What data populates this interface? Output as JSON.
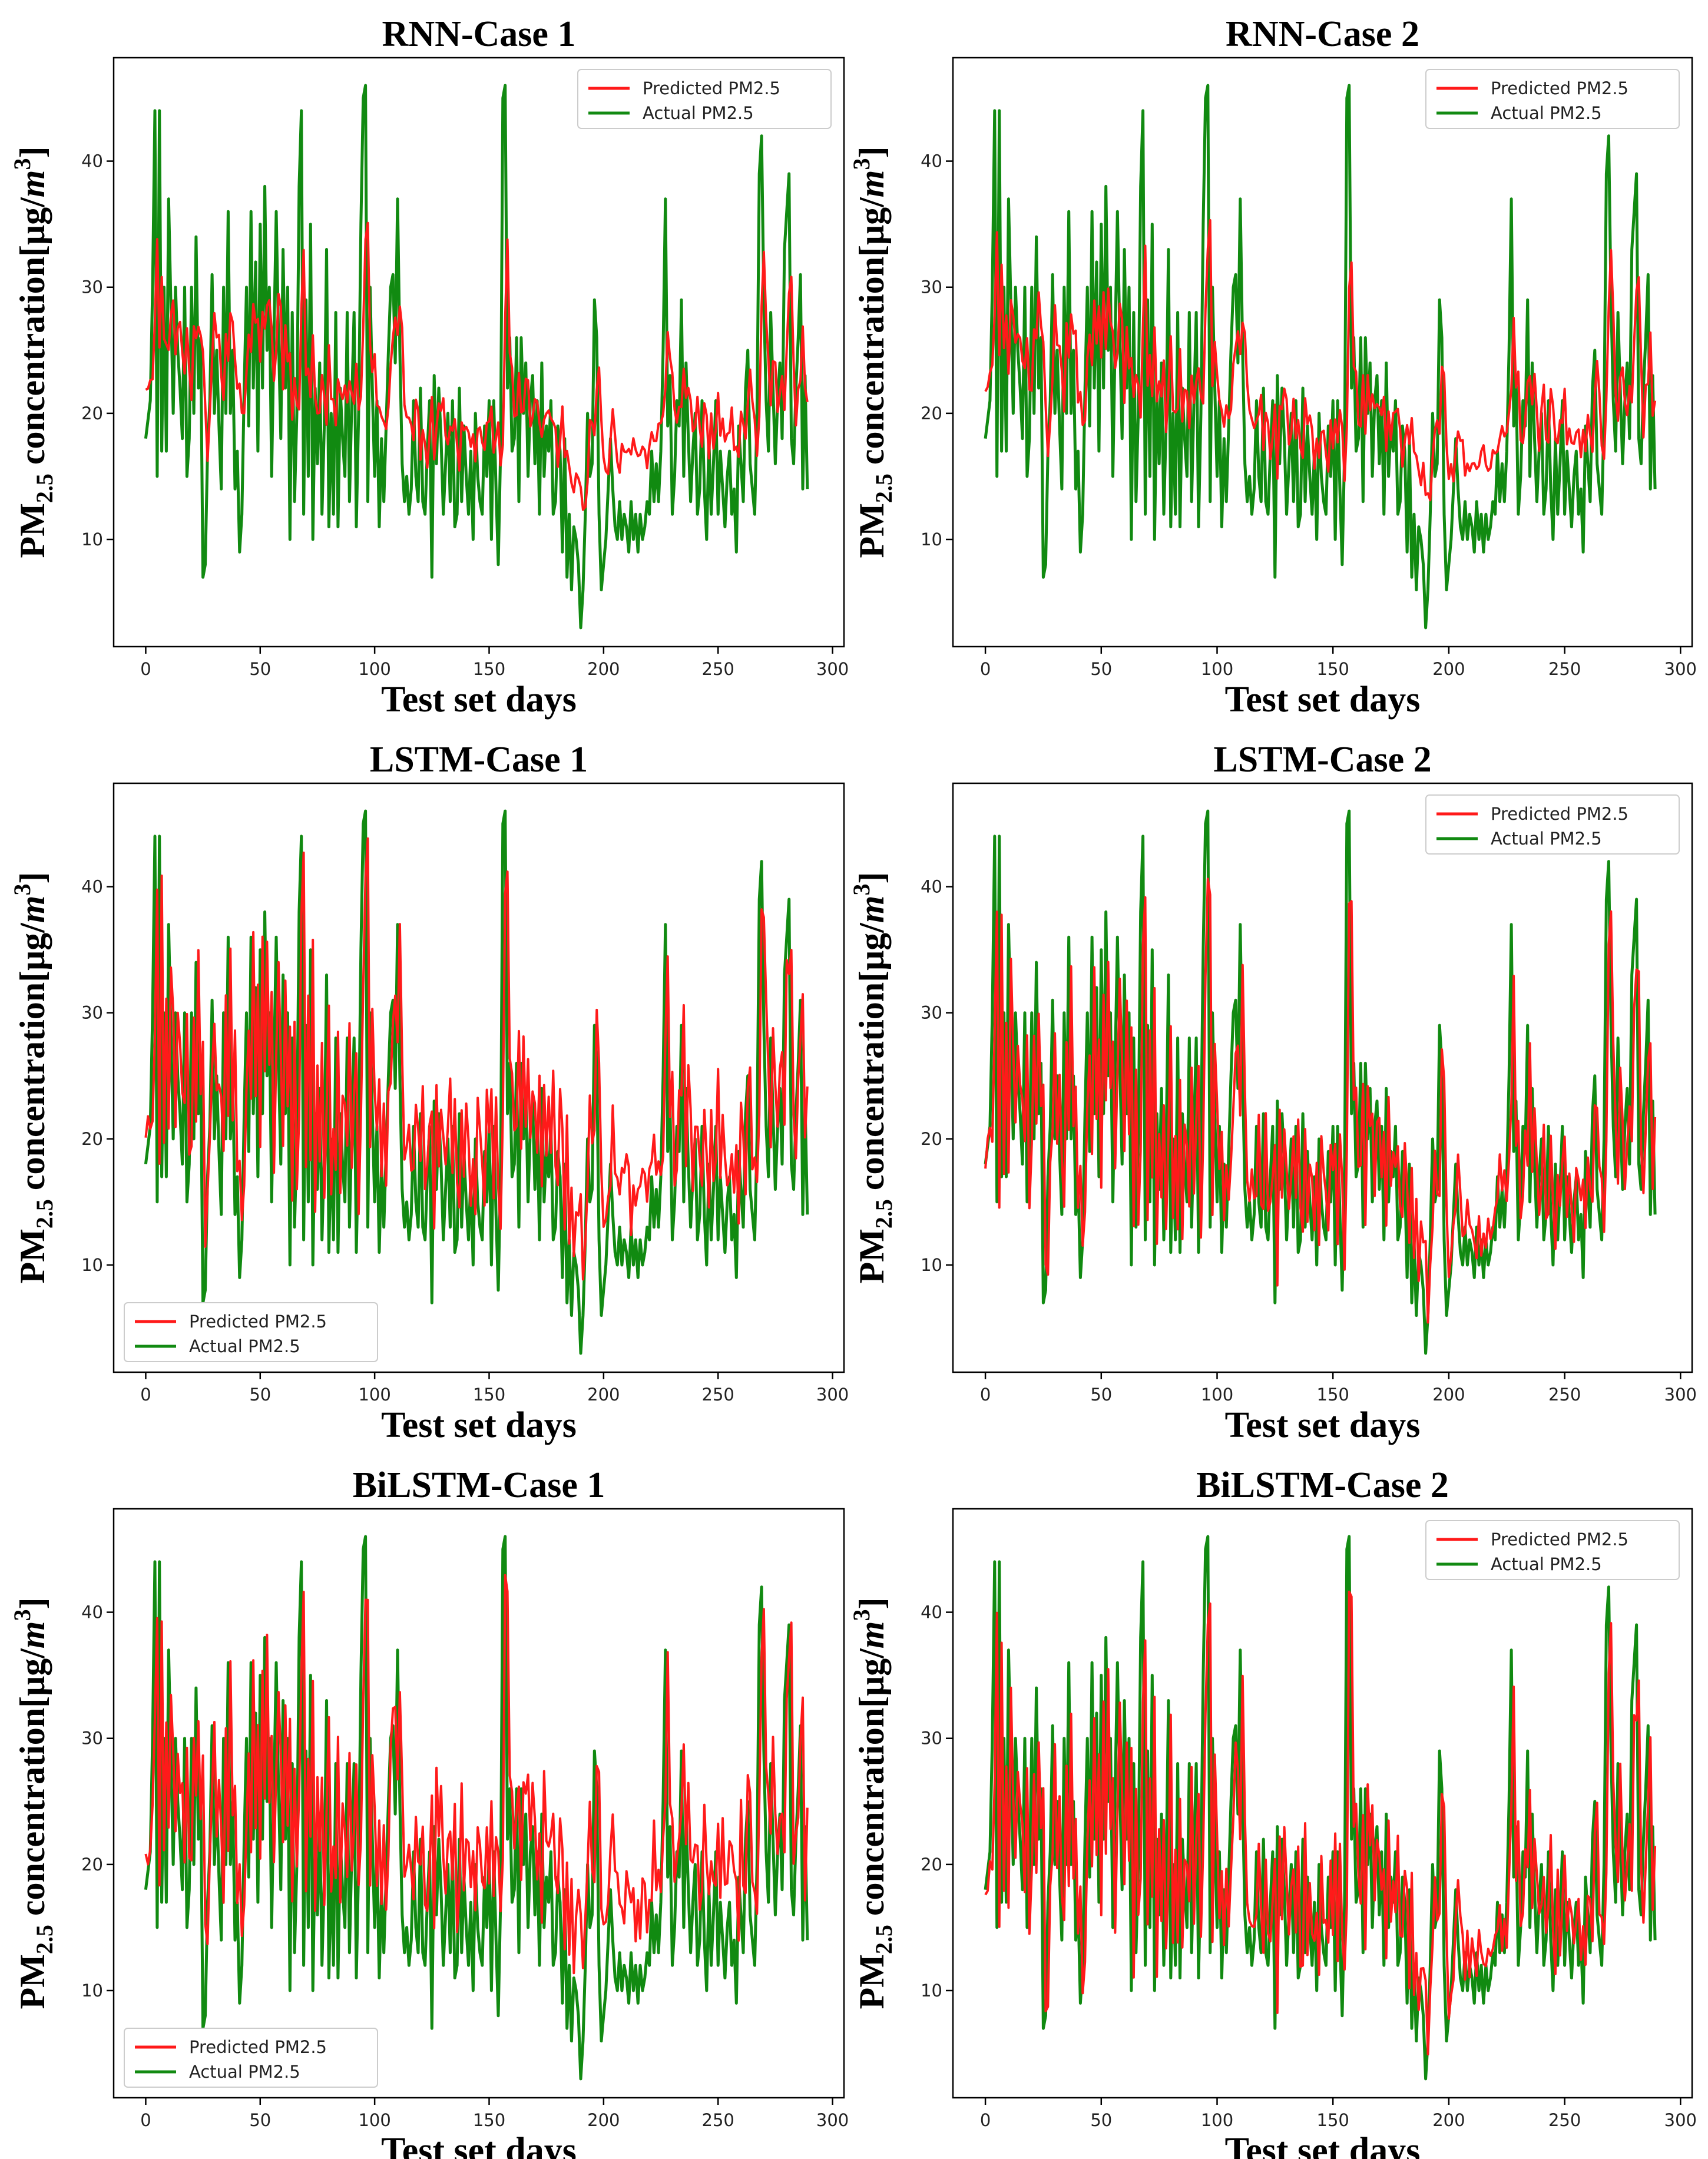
{
  "colors": {
    "predicted": "#ff1a1a",
    "actual": "#118a11",
    "frame": "#000000"
  },
  "chart_data": [
    {
      "type": "line",
      "title": "RNN-Case 1",
      "xlabel": "Test set days",
      "ylabel_prefix": "PM",
      "ylabel_sub": "2.5",
      "ylabel_main": " concentration[μg/",
      "ylabel_unit": "m",
      "ylabel_sup": "3",
      "ylabel_end": "]",
      "xlim": [
        -14,
        305
      ],
      "ylim": [
        1.5,
        48.2
      ],
      "xticks": [
        0,
        50,
        100,
        150,
        200,
        250,
        300
      ],
      "xtick_labels": [
        "0",
        "50",
        "100",
        "150",
        "200",
        "250",
        "300"
      ],
      "yticks": [
        10,
        20,
        30,
        40
      ],
      "ytick_labels": [
        "10",
        "20",
        "30",
        "40"
      ],
      "legend_position": "top-right",
      "legend": [
        "Predicted PM2.5",
        "Actual PM2.5"
      ],
      "model": "rnn",
      "noise_pred": 1.2,
      "seed": 11,
      "series": [
        {
          "name": "Predicted PM2.5",
          "model": "rnn"
        },
        {
          "name": "Actual PM2.5",
          "values_ref": "actual"
        }
      ]
    },
    {
      "type": "line",
      "title": "RNN-Case 2",
      "xlabel": "Test set days",
      "ylabel_prefix": "PM",
      "ylabel_sub": "2.5",
      "ylabel_main": " concentration[μg/",
      "ylabel_unit": "m",
      "ylabel_sup": "3",
      "ylabel_end": "]",
      "xlim": [
        -14,
        305
      ],
      "ylim": [
        1.5,
        48.2
      ],
      "xticks": [
        0,
        50,
        100,
        150,
        200,
        250,
        300
      ],
      "xtick_labels": [
        "0",
        "50",
        "100",
        "150",
        "200",
        "250",
        "300"
      ],
      "yticks": [
        10,
        20,
        30,
        40
      ],
      "ytick_labels": [
        "10",
        "20",
        "30",
        "40"
      ],
      "legend_position": "top-right",
      "legend": [
        "Predicted PM2.5",
        "Actual PM2.5"
      ],
      "model": "rnn2",
      "noise_pred": 1.5,
      "seed": 23,
      "series": [
        {
          "name": "Predicted PM2.5",
          "model": "rnn2"
        },
        {
          "name": "Actual PM2.5",
          "values_ref": "actual"
        }
      ]
    },
    {
      "type": "line",
      "title": "LSTM-Case 1",
      "xlabel": "Test set days",
      "ylabel_prefix": "PM",
      "ylabel_sub": "2.5",
      "ylabel_main": " concentration[μg/",
      "ylabel_unit": "m",
      "ylabel_sup": "3",
      "ylabel_end": "]",
      "xlim": [
        -14,
        305
      ],
      "ylim": [
        1.5,
        48.2
      ],
      "xticks": [
        0,
        50,
        100,
        150,
        200,
        250,
        300
      ],
      "xtick_labels": [
        "0",
        "50",
        "100",
        "150",
        "200",
        "250",
        "300"
      ],
      "yticks": [
        10,
        20,
        30,
        40
      ],
      "ytick_labels": [
        "10",
        "20",
        "30",
        "40"
      ],
      "legend_position": "bottom-left",
      "legend": [
        "Predicted PM2.5",
        "Actual PM2.5"
      ],
      "model": "lstm1",
      "noise_pred": 2.2,
      "seed": 37,
      "series": [
        {
          "name": "Predicted PM2.5",
          "model": "lstm1"
        },
        {
          "name": "Actual PM2.5",
          "values_ref": "actual"
        }
      ]
    },
    {
      "type": "line",
      "title": "LSTM-Case 2",
      "xlabel": "Test set days",
      "ylabel_prefix": "PM",
      "ylabel_sub": "2.5",
      "ylabel_main": " concentration[μg/",
      "ylabel_unit": "m",
      "ylabel_sup": "3",
      "ylabel_end": "]",
      "xlim": [
        -14,
        305
      ],
      "ylim": [
        1.5,
        48.2
      ],
      "xticks": [
        0,
        50,
        100,
        150,
        200,
        250,
        300
      ],
      "xtick_labels": [
        "0",
        "50",
        "100",
        "150",
        "200",
        "250",
        "300"
      ],
      "yticks": [
        10,
        20,
        30,
        40
      ],
      "ytick_labels": [
        "10",
        "20",
        "30",
        "40"
      ],
      "legend_position": "top-right",
      "legend": [
        "Predicted PM2.5",
        "Actual PM2.5"
      ],
      "model": "lstm2",
      "noise_pred": 1.6,
      "seed": 41,
      "series": [
        {
          "name": "Predicted PM2.5",
          "model": "lstm2"
        },
        {
          "name": "Actual PM2.5",
          "values_ref": "actual"
        }
      ]
    },
    {
      "type": "line",
      "title": "BiLSTM-Case 1",
      "xlabel": "Test set days",
      "ylabel_prefix": "PM",
      "ylabel_sub": "2.5",
      "ylabel_main": " concentration[μg/",
      "ylabel_unit": "m",
      "ylabel_sup": "3",
      "ylabel_end": "]",
      "xlim": [
        -14,
        305
      ],
      "ylim": [
        1.5,
        48.2
      ],
      "xticks": [
        0,
        50,
        100,
        150,
        200,
        250,
        300
      ],
      "xtick_labels": [
        "0",
        "50",
        "100",
        "150",
        "200",
        "250",
        "300"
      ],
      "yticks": [
        10,
        20,
        30,
        40
      ],
      "ytick_labels": [
        "10",
        "20",
        "30",
        "40"
      ],
      "legend_position": "bottom-left",
      "legend": [
        "Predicted PM2.5",
        "Actual PM2.5"
      ],
      "model": "bilstm1",
      "noise_pred": 2.4,
      "seed": 53,
      "series": [
        {
          "name": "Predicted PM2.5",
          "model": "bilstm1"
        },
        {
          "name": "Actual PM2.5",
          "values_ref": "actual"
        }
      ]
    },
    {
      "type": "line",
      "title": "BiLSTM-Case 2",
      "xlabel": "Test set days",
      "ylabel_prefix": "PM",
      "ylabel_sub": "2.5",
      "ylabel_main": " concentration[μg/",
      "ylabel_unit": "m",
      "ylabel_sup": "3",
      "ylabel_end": "]",
      "xlim": [
        -14,
        305
      ],
      "ylim": [
        1.5,
        48.2
      ],
      "xticks": [
        0,
        50,
        100,
        150,
        200,
        250,
        300
      ],
      "xtick_labels": [
        "0",
        "50",
        "100",
        "150",
        "200",
        "250",
        "300"
      ],
      "yticks": [
        10,
        20,
        30,
        40
      ],
      "ytick_labels": [
        "10",
        "20",
        "30",
        "40"
      ],
      "legend_position": "top-right",
      "legend": [
        "Predicted PM2.5",
        "Actual PM2.5"
      ],
      "model": "bilstm2",
      "noise_pred": 1.7,
      "seed": 67,
      "series": [
        {
          "name": "Predicted PM2.5",
          "model": "bilstm2"
        },
        {
          "name": "Actual PM2.5",
          "values_ref": "actual"
        }
      ]
    }
  ],
  "actual_anchors": [
    [
      0,
      18
    ],
    [
      2,
      21
    ],
    [
      3,
      30
    ],
    [
      4,
      44
    ],
    [
      5,
      15
    ],
    [
      6,
      44
    ],
    [
      7,
      17
    ],
    [
      8,
      30
    ],
    [
      9,
      17
    ],
    [
      10,
      37
    ],
    [
      12,
      20
    ],
    [
      13,
      30
    ],
    [
      14,
      25
    ],
    [
      15,
      22
    ],
    [
      16,
      18
    ],
    [
      17,
      30
    ],
    [
      18,
      15
    ],
    [
      19,
      18
    ],
    [
      20,
      30
    ],
    [
      21,
      20
    ],
    [
      22,
      34
    ],
    [
      23,
      22
    ],
    [
      24,
      26
    ],
    [
      25,
      7
    ],
    [
      26,
      8
    ],
    [
      27,
      17
    ],
    [
      28,
      21
    ],
    [
      29,
      31
    ],
    [
      30,
      20
    ],
    [
      31,
      25
    ],
    [
      32,
      19
    ],
    [
      33,
      14
    ],
    [
      34,
      30
    ],
    [
      35,
      20
    ],
    [
      36,
      36
    ],
    [
      37,
      20
    ],
    [
      38,
      25
    ],
    [
      39,
      14
    ],
    [
      40,
      17
    ],
    [
      41,
      9
    ],
    [
      42,
      12
    ],
    [
      43,
      22
    ],
    [
      44,
      30
    ],
    [
      45,
      19
    ],
    [
      46,
      36
    ],
    [
      47,
      22
    ],
    [
      48,
      32
    ],
    [
      49,
      17
    ],
    [
      50,
      35
    ],
    [
      51,
      22
    ],
    [
      52,
      38
    ],
    [
      53,
      25
    ],
    [
      54,
      30
    ],
    [
      55,
      15
    ],
    [
      56,
      26
    ],
    [
      57,
      36
    ],
    [
      58,
      26
    ],
    [
      59,
      18
    ],
    [
      60,
      33
    ],
    [
      61,
      22
    ],
    [
      62,
      30
    ],
    [
      63,
      10
    ],
    [
      64,
      28
    ],
    [
      65,
      13
    ],
    [
      66,
      20
    ],
    [
      67,
      38
    ],
    [
      68,
      44
    ],
    [
      69,
      12
    ],
    [
      70,
      29
    ],
    [
      71,
      15
    ],
    [
      72,
      35
    ],
    [
      73,
      10
    ],
    [
      74,
      22
    ],
    [
      75,
      16
    ],
    [
      76,
      24
    ],
    [
      77,
      12
    ],
    [
      78,
      19
    ],
    [
      79,
      33
    ],
    [
      80,
      11
    ],
    [
      81,
      20
    ],
    [
      82,
      12
    ],
    [
      83,
      28
    ],
    [
      84,
      11
    ],
    [
      85,
      22
    ],
    [
      86,
      18
    ],
    [
      87,
      15
    ],
    [
      88,
      28
    ],
    [
      89,
      13
    ],
    [
      90,
      21
    ],
    [
      91,
      28
    ],
    [
      92,
      11
    ],
    [
      93,
      20
    ],
    [
      94,
      35
    ],
    [
      95,
      45
    ],
    [
      96,
      46
    ],
    [
      97,
      13
    ],
    [
      98,
      30
    ],
    [
      99,
      22
    ],
    [
      100,
      15
    ],
    [
      101,
      21
    ],
    [
      102,
      11
    ],
    [
      103,
      18
    ],
    [
      104,
      13
    ],
    [
      105,
      19
    ],
    [
      106,
      25
    ],
    [
      107,
      30
    ],
    [
      108,
      31
    ],
    [
      109,
      24
    ],
    [
      110,
      37
    ],
    [
      111,
      25
    ],
    [
      112,
      16
    ],
    [
      113,
      13
    ],
    [
      114,
      15
    ],
    [
      115,
      12
    ],
    [
      116,
      14
    ],
    [
      117,
      21
    ],
    [
      118,
      15
    ],
    [
      119,
      13
    ],
    [
      120,
      22
    ],
    [
      121,
      13
    ],
    [
      122,
      12
    ],
    [
      123,
      17
    ],
    [
      124,
      21
    ],
    [
      125,
      7
    ],
    [
      126,
      23
    ],
    [
      127,
      16
    ],
    [
      128,
      22
    ],
    [
      129,
      18
    ],
    [
      130,
      12
    ],
    [
      131,
      16
    ],
    [
      132,
      20
    ],
    [
      133,
      13
    ],
    [
      134,
      21
    ],
    [
      135,
      11
    ],
    [
      136,
      12
    ],
    [
      137,
      22
    ],
    [
      138,
      13
    ],
    [
      139,
      19
    ],
    [
      140,
      15
    ],
    [
      141,
      12
    ],
    [
      142,
      17
    ],
    [
      143,
      10
    ],
    [
      144,
      20
    ],
    [
      145,
      15
    ],
    [
      146,
      13
    ],
    [
      147,
      12
    ],
    [
      148,
      19
    ],
    [
      149,
      15
    ],
    [
      150,
      21
    ],
    [
      151,
      10
    ],
    [
      152,
      21
    ],
    [
      153,
      14
    ],
    [
      154,
      8
    ],
    [
      155,
      17
    ],
    [
      156,
      45
    ],
    [
      157,
      46
    ],
    [
      158,
      22
    ],
    [
      159,
      26
    ],
    [
      160,
      17
    ],
    [
      161,
      18
    ],
    [
      162,
      26
    ],
    [
      163,
      13
    ],
    [
      164,
      26
    ],
    [
      165,
      20
    ],
    [
      166,
      24
    ],
    [
      167,
      15
    ],
    [
      168,
      21
    ],
    [
      169,
      23
    ],
    [
      170,
      16
    ],
    [
      171,
      21
    ],
    [
      172,
      12
    ],
    [
      173,
      24
    ],
    [
      174,
      15
    ],
    [
      175,
      19
    ],
    [
      176,
      17
    ],
    [
      177,
      21
    ],
    [
      178,
      12
    ],
    [
      179,
      13
    ],
    [
      180,
      19
    ],
    [
      181,
      17
    ],
    [
      182,
      9
    ],
    [
      183,
      18
    ],
    [
      184,
      7
    ],
    [
      185,
      12
    ],
    [
      186,
      6
    ],
    [
      187,
      11
    ],
    [
      188,
      10
    ],
    [
      189,
      8
    ],
    [
      190,
      3
    ],
    [
      191,
      6
    ],
    [
      192,
      12
    ],
    [
      193,
      20
    ],
    [
      194,
      15
    ],
    [
      195,
      16
    ],
    [
      196,
      29
    ],
    [
      197,
      26
    ],
    [
      198,
      12
    ],
    [
      199,
      6
    ],
    [
      200,
      8
    ],
    [
      201,
      10
    ],
    [
      202,
      14
    ],
    [
      203,
      18
    ],
    [
      204,
      14
    ],
    [
      205,
      11
    ],
    [
      206,
      10
    ],
    [
      207,
      13
    ],
    [
      208,
      10
    ],
    [
      209,
      12
    ],
    [
      210,
      11
    ],
    [
      211,
      9
    ],
    [
      212,
      13
    ],
    [
      213,
      10
    ],
    [
      214,
      12
    ],
    [
      215,
      9
    ],
    [
      216,
      12
    ],
    [
      217,
      10
    ],
    [
      218,
      11
    ],
    [
      219,
      13
    ],
    [
      220,
      12
    ],
    [
      221,
      17
    ],
    [
      222,
      13
    ],
    [
      223,
      16
    ],
    [
      224,
      13
    ],
    [
      225,
      17
    ],
    [
      226,
      25
    ],
    [
      227,
      37
    ],
    [
      228,
      19
    ],
    [
      229,
      23
    ],
    [
      230,
      12
    ],
    [
      231,
      15
    ],
    [
      232,
      21
    ],
    [
      233,
      19
    ],
    [
      234,
      29
    ],
    [
      235,
      15
    ],
    [
      236,
      24
    ],
    [
      237,
      18
    ],
    [
      238,
      13
    ],
    [
      239,
      17
    ],
    [
      240,
      20
    ],
    [
      241,
      12
    ],
    [
      242,
      14
    ],
    [
      243,
      21
    ],
    [
      244,
      14
    ],
    [
      245,
      10
    ],
    [
      246,
      18
    ],
    [
      247,
      12
    ],
    [
      248,
      16
    ],
    [
      249,
      21
    ],
    [
      250,
      12
    ],
    [
      251,
      17
    ],
    [
      252,
      14
    ],
    [
      253,
      11
    ],
    [
      254,
      15
    ],
    [
      255,
      17
    ],
    [
      256,
      12
    ],
    [
      257,
      14
    ],
    [
      258,
      9
    ],
    [
      259,
      19
    ],
    [
      260,
      16
    ],
    [
      261,
      13
    ],
    [
      262,
      22
    ],
    [
      263,
      25
    ],
    [
      264,
      16
    ],
    [
      265,
      14
    ],
    [
      266,
      12
    ],
    [
      267,
      20
    ],
    [
      268,
      39
    ],
    [
      269,
      42
    ],
    [
      270,
      29
    ],
    [
      271,
      21
    ],
    [
      272,
      17
    ],
    [
      273,
      28
    ],
    [
      274,
      22
    ],
    [
      275,
      16
    ],
    [
      276,
      21
    ],
    [
      277,
      24
    ],
    [
      278,
      18
    ],
    [
      279,
      33
    ],
    [
      280,
      36
    ],
    [
      281,
      39
    ],
    [
      282,
      18
    ],
    [
      283,
      16
    ],
    [
      284,
      22
    ],
    [
      285,
      26
    ],
    [
      286,
      31
    ],
    [
      287,
      14
    ],
    [
      288,
      23
    ],
    [
      289,
      14
    ]
  ]
}
